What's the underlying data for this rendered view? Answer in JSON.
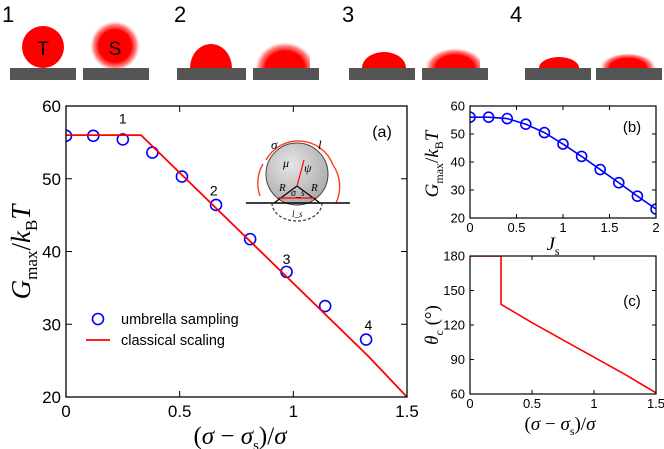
{
  "top_panel": {
    "snapshots": [
      {
        "label": "1",
        "droplet_letters": [
          "T",
          "S"
        ]
      },
      {
        "label": "2",
        "droplet_letters": []
      },
      {
        "label": "3",
        "droplet_letters": []
      },
      {
        "label": "4",
        "droplet_letters": []
      }
    ]
  },
  "colors": {
    "accent_red": "#ff0000",
    "blue": "#0000ff",
    "substrate": "#555555",
    "inset_sphere": "#c8c8c8"
  },
  "chart_data": [
    {
      "id": "a",
      "panel_label": "(a)",
      "type": "scatter",
      "ylabel": "G_max / k_B T",
      "xlabel": "(σ − σ_s) / σ",
      "xlim": [
        0,
        1.5
      ],
      "ylim": [
        20,
        60
      ],
      "xticks": [
        "0",
        "0.5",
        "1",
        "1.5"
      ],
      "yticks": [
        "20",
        "30",
        "40",
        "50",
        "60"
      ],
      "series": [
        {
          "name": "umbrella sampling",
          "marker": "open-circle",
          "color": "#0000ff",
          "x": [
            0.0,
            0.12,
            0.25,
            0.38,
            0.51,
            0.66,
            0.81,
            0.97,
            1.14,
            1.32
          ],
          "y": [
            55.9,
            55.9,
            55.4,
            53.6,
            50.3,
            46.4,
            41.7,
            37.2,
            32.5,
            27.9
          ]
        },
        {
          "name": "classical scaling",
          "marker": "line",
          "color": "#ff0000",
          "x": [
            0.0,
            0.33,
            1.33,
            1.5
          ],
          "y": [
            56.0,
            56.0,
            25.6,
            20.0
          ]
        }
      ],
      "point_labels": [
        {
          "text": "1",
          "x": 0.25,
          "y": 57.6
        },
        {
          "text": "2",
          "x": 0.65,
          "y": 47.7
        },
        {
          "text": "3",
          "x": 0.97,
          "y": 38.3
        },
        {
          "text": "4",
          "x": 1.33,
          "y": 29.2
        }
      ],
      "inset_symbols": [
        "σ",
        "l",
        "μ",
        "ψ",
        "R",
        "R",
        "σ_s",
        "l_s"
      ],
      "legend_placement": "bottom-left"
    },
    {
      "id": "b",
      "panel_label": "(b)",
      "type": "line",
      "ylabel": "G_max / k_B T",
      "xlabel": "J_s",
      "xlim": [
        0,
        2
      ],
      "ylim": [
        20,
        60
      ],
      "xticks": [
        "0",
        "0.5",
        "1",
        "1.5",
        "2"
      ],
      "yticks": [
        "20",
        "30",
        "40",
        "50",
        "60"
      ],
      "series": [
        {
          "marker": "open-circle-with-line",
          "color": "#0000ff",
          "x": [
            0.0,
            0.2,
            0.4,
            0.6,
            0.8,
            1.0,
            1.2,
            1.4,
            1.6,
            1.8,
            2.0
          ],
          "y": [
            56.0,
            56.0,
            55.5,
            53.5,
            50.5,
            46.4,
            42.0,
            37.3,
            32.6,
            27.8,
            23.2
          ]
        }
      ]
    },
    {
      "id": "c",
      "panel_label": "(c)",
      "type": "line",
      "ylabel": "θ_c (°)",
      "xlabel": "(σ − σ_s) / σ",
      "xlim": [
        0,
        1.5
      ],
      "ylim": [
        60,
        180
      ],
      "xticks": [
        "0",
        "0.5",
        "1",
        "1.5"
      ],
      "yticks": [
        "60",
        "90",
        "120",
        "150",
        "180"
      ],
      "series": [
        {
          "color": "#ff0000",
          "x": [
            0.0,
            0.25,
            0.25,
            0.5,
            0.75,
            1.0,
            1.25,
            1.5
          ],
          "y": [
            180,
            180,
            138,
            122,
            107,
            92,
            77,
            61
          ]
        }
      ]
    }
  ]
}
